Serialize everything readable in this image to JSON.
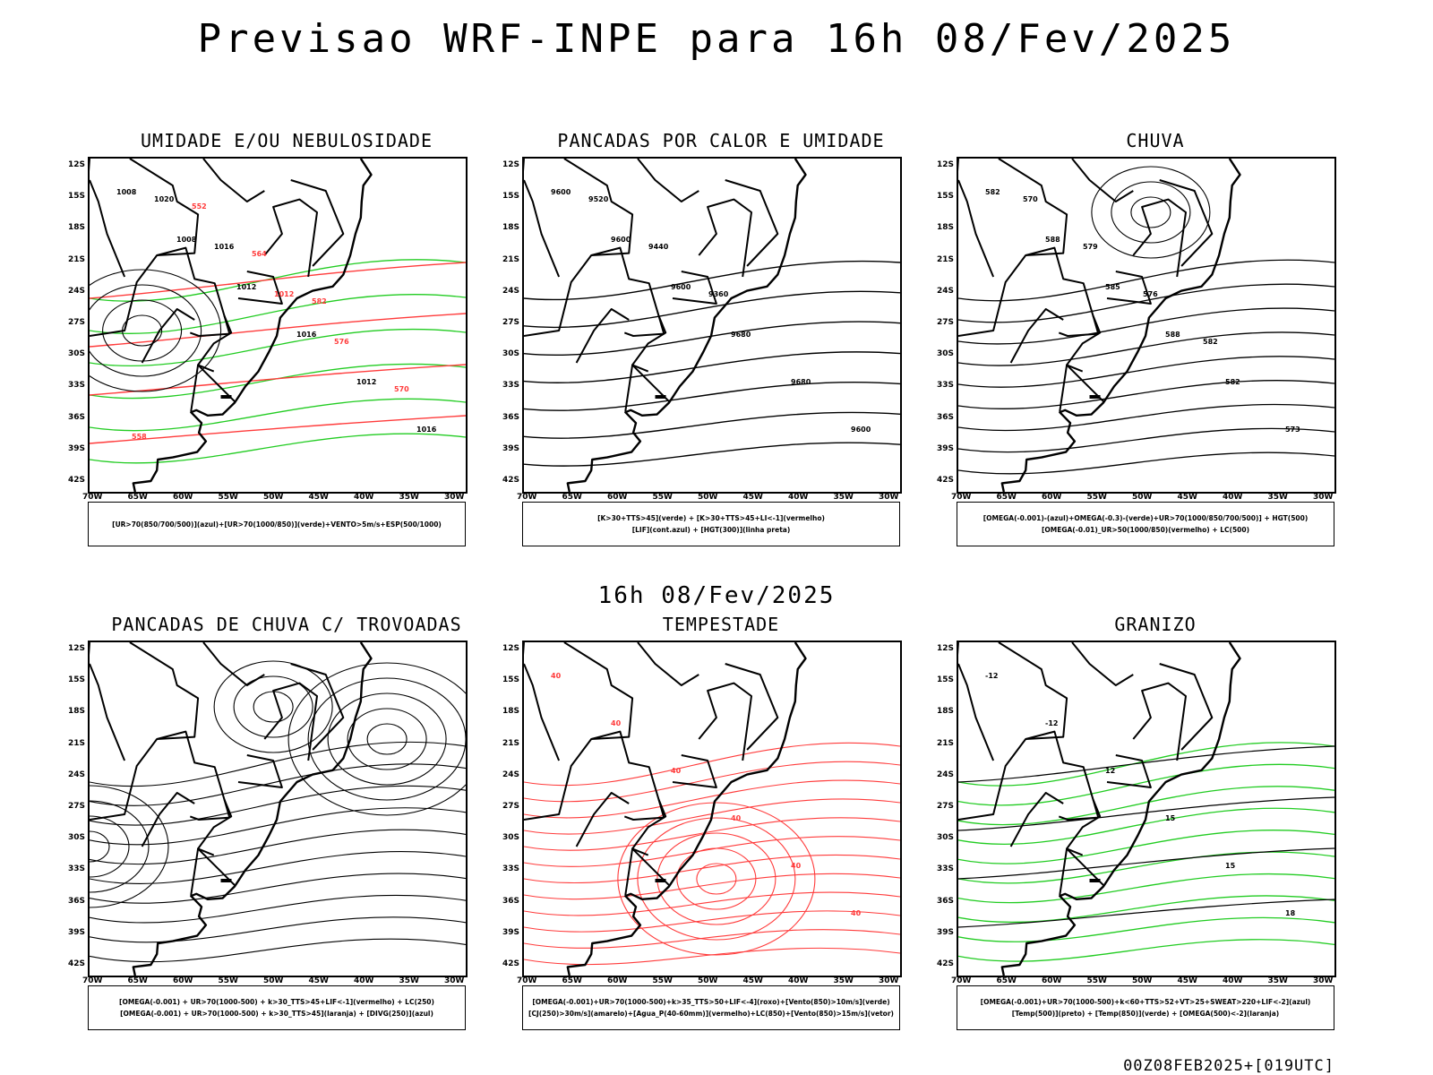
{
  "title": "Previsao WRF-INPE  para 16h 08/Fev/2025",
  "mid_title": "16h 08/Fev/2025",
  "footer": "00Z08FEB2025+[019UTC]",
  "lat_labels": [
    "12S",
    "15S",
    "18S",
    "21S",
    "24S",
    "27S",
    "30S",
    "33S",
    "36S",
    "39S",
    "42S"
  ],
  "lon_labels": [
    "70W",
    "65W",
    "60W",
    "55W",
    "50W",
    "45W",
    "40W",
    "35W",
    "30W"
  ],
  "colors": {
    "red": "#ff3b3b",
    "green": "#22cc22",
    "blue": "#3355ff",
    "lavender": "#aab0f0",
    "darkgreen": "#1f4a3e",
    "yellow": "#e5dc2a",
    "black": "#000000"
  },
  "panels": [
    {
      "id": "umidade",
      "title": "UMIDADE E/OU NEBULOSIDADE",
      "legend": [
        "[UR>70(850/700/500)](azul)+[UR>70(1000/850)](verde)+VENTO>5m/s+ESP(500/1000)"
      ],
      "labels": [
        "1008",
        "1008",
        "1012",
        "1016",
        "1012",
        "1016",
        "1020",
        "1016",
        "1012",
        "576",
        "570",
        "558",
        "552",
        "564",
        "582"
      ]
    },
    {
      "id": "pancadas-calor",
      "title": "PANCADAS POR CALOR E UMIDADE",
      "legend": [
        "[K>30+TTS>45](verde) + [K>30+TTS>45+LI<-1](vermelho)",
        "[LIF](cont.azul) + [HGT(300)](linha preta)"
      ],
      "labels": [
        "9600",
        "9600",
        "9600",
        "9680",
        "9680",
        "9600",
        "9520",
        "9440",
        "9360"
      ]
    },
    {
      "id": "chuva",
      "title": "CHUVA",
      "legend": [
        "[OMEGA(-0.001)-(azul)+OMEGA(-0.3)-(verde)+UR>70(1000/850/700/500)] + HGT(500)",
        "[OMEGA(-0.01)_UR>50(1000/850)(vermelho) + LC(500)"
      ],
      "labels": [
        "582",
        "588",
        "585",
        "588",
        "582",
        "573",
        "570",
        "579",
        "576",
        "582"
      ]
    },
    {
      "id": "pancadas-trovoadas",
      "title": "PANCADAS DE CHUVA C/ TROVOADAS",
      "legend": [
        "[OMEGA(-0.001) + UR>70(1000-500) + k>30_TTS>45+LIF<-1](vermelho) + LC(250)",
        "[OMEGA(-0.001) + UR>70(1000-500) + k>30_TTS>45](laranja) + [DIVG(250)](azul)"
      ],
      "labels": []
    },
    {
      "id": "tempestade",
      "title": "TEMPESTADE",
      "legend": [
        "[OMEGA(-0.001)+UR>70(1000-500)+k>35_TTS>50+LIF<-4](roxo)+[Vento(850)>10m/s](verde)",
        "[CJ(250)>30m/s](amarelo)+[Agua_P(40-60mm)](vermelho)+LC(850)+[Vento(850)>15m/s](vetor)"
      ],
      "labels": [
        "40",
        "40",
        "40",
        "40",
        "40",
        "40"
      ]
    },
    {
      "id": "granizo",
      "title": "GRANIZO",
      "legend": [
        "[OMEGA(-0.001)+UR>70(1000-500)+k<60+TTS>52+VT>25+SWEAT>220+LIF<-2](azul)",
        "[Temp(500)](preto) + [Temp(850)](verde) + [OMEGA(500)<-2](laranja)"
      ],
      "labels": [
        "-12",
        "-12",
        "12",
        "15",
        "15",
        "18"
      ]
    }
  ]
}
